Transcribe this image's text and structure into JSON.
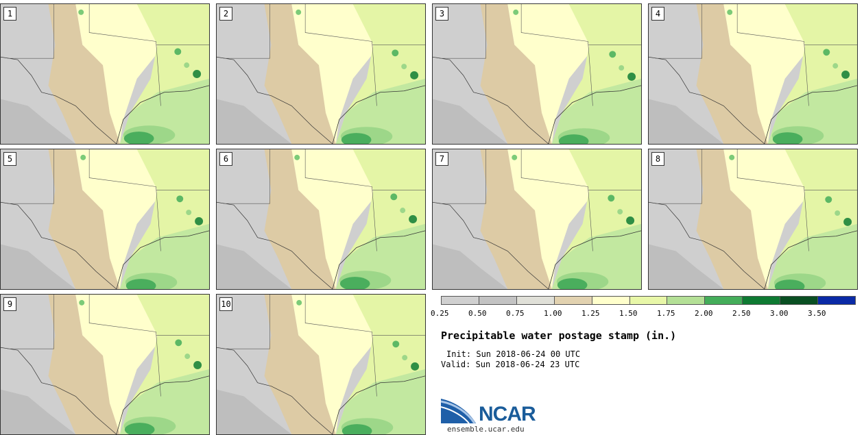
{
  "stamps": [
    {
      "label": "1"
    },
    {
      "label": "2"
    },
    {
      "label": "3"
    },
    {
      "label": "4"
    },
    {
      "label": "5"
    },
    {
      "label": "6"
    },
    {
      "label": "7"
    },
    {
      "label": "8"
    },
    {
      "label": "9"
    },
    {
      "label": "10"
    }
  ],
  "legend": {
    "colors": [
      "#d0d0d0",
      "#c3c3c3",
      "#e0e0d8",
      "#e2d2b0",
      "#ffffcc",
      "#e8f7a8",
      "#b4e096",
      "#44ad5a",
      "#0e7a32",
      "#094f22",
      "#0a2aa6"
    ],
    "ticks": [
      "0.25",
      "0.50",
      "0.75",
      "1.00",
      "1.25",
      "1.50",
      "1.75",
      "2.00",
      "2.50",
      "3.00",
      "3.50"
    ]
  },
  "title": "Precipitable water postage stamp (in.)",
  "init": "Init: Sun 2018-06-24 00 UTC",
  "valid": "Valid: Sun 2018-06-24 23 UTC",
  "logo": {
    "name": "NCAR",
    "url": "ensemble.ucar.edu"
  }
}
